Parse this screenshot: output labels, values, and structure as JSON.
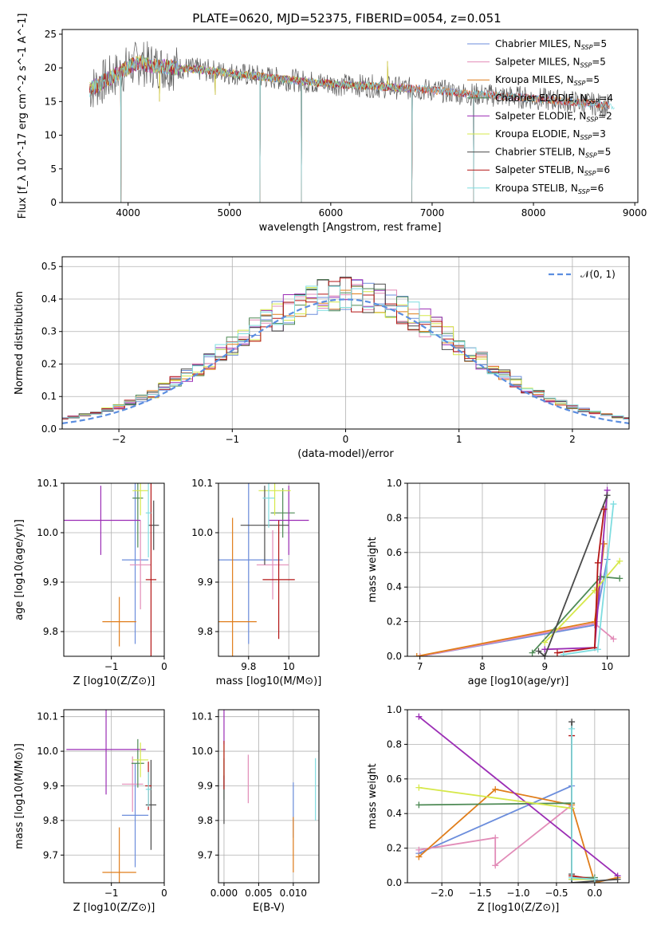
{
  "page_title": "PLATE=0620, MJD=52375, FIBERID=0054, z=0.051",
  "models": [
    {
      "name": "Chabrier MILES",
      "nssp": "5",
      "color": "#6b8ddc"
    },
    {
      "name": "Salpeter MILES",
      "nssp": "5",
      "color": "#e28cb8"
    },
    {
      "name": "Kroupa MILES",
      "nssp": "5",
      "color": "#e07d1a"
    },
    {
      "name": "Chabrier ELODIE",
      "nssp": "4",
      "color": "#4e8a55"
    },
    {
      "name": "Salpeter ELODIE",
      "nssp": "2",
      "color": "#9b2db5"
    },
    {
      "name": "Kroupa ELODIE",
      "nssp": "3",
      "color": "#d6e84a"
    },
    {
      "name": "Chabrier STELIB",
      "nssp": "5",
      "color": "#4a4a4a"
    },
    {
      "name": "Salpeter STELIB",
      "nssp": "6",
      "color": "#b31515"
    },
    {
      "name": "Kroupa STELIB",
      "nssp": "6",
      "color": "#7fdde0"
    }
  ],
  "chart_data": [
    {
      "id": "spectrum",
      "type": "line",
      "xlabel": "wavelength [Angstrom, rest frame]",
      "ylabel": "Flux [f_λ 10^-17 erg cm^-2 s^-1 A^-1]",
      "xlim": [
        3350,
        9030
      ],
      "ylim": [
        0,
        25.7
      ],
      "xticks": [
        4000,
        5000,
        6000,
        7000,
        8000,
        9000
      ],
      "yticks": [
        0,
        5,
        10,
        15,
        20,
        25
      ],
      "legend": "upper right",
      "continuum": {
        "x": [
          3620,
          3800,
          3950,
          4100,
          4300,
          4600,
          4900,
          5200,
          5500,
          5800,
          6100,
          6400,
          6700,
          7000,
          7300,
          7600,
          7900,
          8200,
          8500,
          8800
        ],
        "y": [
          16.8,
          18.3,
          19.6,
          20.8,
          20.2,
          19.9,
          19.4,
          18.9,
          18.4,
          17.9,
          17.5,
          17.3,
          17.0,
          16.7,
          16.2,
          15.9,
          15.6,
          15.2,
          14.8,
          14.3
        ]
      },
      "spikes": [
        {
          "x": 3930,
          "y": 0
        },
        {
          "x": 4310,
          "y": 15
        },
        {
          "x": 4860,
          "y": 16
        },
        {
          "x": 5300,
          "y": 0
        },
        {
          "x": 5710,
          "y": 0
        },
        {
          "x": 6560,
          "y": 21
        },
        {
          "x": 6800,
          "y": 0
        },
        {
          "x": 7410,
          "y": 0
        }
      ]
    },
    {
      "id": "residuals",
      "type": "line",
      "xlabel": "(data-model)/error",
      "ylabel": "Normed distribution",
      "xlim": [
        -2.5,
        2.5
      ],
      "ylim": [
        0,
        0.53
      ],
      "xticks": [
        -2,
        -1,
        0,
        1,
        2
      ],
      "yticks": [
        0.0,
        0.1,
        0.2,
        0.3,
        0.4,
        0.5
      ],
      "legend_label": "𝒩(0, 1)",
      "legend": "upper right",
      "grid": true,
      "gaussian_sigma": 1.0
    },
    {
      "id": "age_vs_Z",
      "type": "scatter",
      "xlabel": "Z [log10(Z/Z⊙)]",
      "ylabel": "age  [log10(age/yr)]",
      "xlim": [
        -1.9,
        0
      ],
      "ylim": [
        9.75,
        10.1
      ],
      "xticks": [
        -1,
        0
      ],
      "yticks": [
        9.8,
        9.9,
        10.0,
        10.1
      ],
      "grid": true,
      "points": [
        {
          "x": -0.55,
          "y": 9.945,
          "xerr": 0.25,
          "yerr": 0.17,
          "model": 0
        },
        {
          "x": -0.45,
          "y": 9.935,
          "xerr": 0.2,
          "yerr": 0.09,
          "model": 1
        },
        {
          "x": -0.85,
          "y": 9.82,
          "xerr": 0.32,
          "yerr": 0.05,
          "model": 2
        },
        {
          "x": -0.5,
          "y": 10.07,
          "xerr": 0.1,
          "yerr": 0.1,
          "model": 3
        },
        {
          "x": -1.2,
          "y": 10.025,
          "xerr": 0.75,
          "yerr": 0.07,
          "model": 4
        },
        {
          "x": -0.45,
          "y": 10.085,
          "xerr": 0.15,
          "yerr": 0.05,
          "model": 5
        },
        {
          "x": -0.2,
          "y": 10.015,
          "xerr": 0.1,
          "yerr": 0.05,
          "model": 6
        },
        {
          "x": -0.25,
          "y": 9.905,
          "xerr": 0.1,
          "yerr": 0.22,
          "model": 7
        },
        {
          "x": -0.3,
          "y": 10.04,
          "xerr": 0.05,
          "yerr": 0.09,
          "model": 8
        }
      ]
    },
    {
      "id": "age_vs_mass",
      "type": "scatter",
      "xlabel": "mass [log10(M/M⊙)]",
      "ylabel": "",
      "xlim": [
        9.65,
        10.15
      ],
      "ylim": [
        9.75,
        10.1
      ],
      "xticks": [
        9.8,
        10.0
      ],
      "yticks": [
        9.8,
        9.9,
        10.0,
        10.1
      ],
      "grid": true,
      "points": [
        {
          "x": 9.8,
          "y": 9.945,
          "xerr": 0.17,
          "yerr": 0.17,
          "model": 0
        },
        {
          "x": 9.92,
          "y": 9.935,
          "xerr": 0.08,
          "yerr": 0.07,
          "model": 1
        },
        {
          "x": 9.72,
          "y": 9.82,
          "xerr": 0.12,
          "yerr": 0.21,
          "model": 2
        },
        {
          "x": 9.97,
          "y": 10.04,
          "xerr": 0.06,
          "yerr": 0.05,
          "model": 3
        },
        {
          "x": 10.0,
          "y": 10.025,
          "xerr": 0.1,
          "yerr": 0.07,
          "model": 4
        },
        {
          "x": 9.93,
          "y": 10.085,
          "xerr": 0.08,
          "yerr": 0.05,
          "model": 5
        },
        {
          "x": 9.88,
          "y": 10.015,
          "xerr": 0.12,
          "yerr": 0.08,
          "model": 6
        },
        {
          "x": 9.95,
          "y": 9.905,
          "xerr": 0.08,
          "yerr": 0.12,
          "model": 7
        },
        {
          "x": 9.9,
          "y": 10.07,
          "xerr": 0.03,
          "yerr": 0.06,
          "model": 8
        }
      ]
    },
    {
      "id": "weight_vs_age",
      "type": "line",
      "xlabel": "age  [log10(age/yr)]",
      "ylabel": "mass weight",
      "xlim": [
        6.8,
        10.35
      ],
      "ylim": [
        0,
        1.0
      ],
      "xticks": [
        7,
        8,
        9,
        10
      ],
      "yticks": [
        0.0,
        0.2,
        0.4,
        0.6,
        0.8,
        1.0
      ],
      "grid": true,
      "series": [
        {
          "model": 0,
          "x": [
            7.0,
            9.8,
            10.0
          ],
          "y": [
            0.0,
            0.18,
            0.56
          ]
        },
        {
          "model": 1,
          "x": [
            7.0,
            9.8,
            10.1
          ],
          "y": [
            0.0,
            0.19,
            0.1
          ]
        },
        {
          "model": 2,
          "x": [
            6.95,
            9.8,
            9.95
          ],
          "y": [
            0.0,
            0.2,
            0.65
          ]
        },
        {
          "model": 3,
          "x": [
            8.8,
            9.9,
            10.2
          ],
          "y": [
            0.02,
            0.46,
            0.45
          ]
        },
        {
          "model": 4,
          "x": [
            9.0,
            9.8,
            10.0
          ],
          "y": [
            0.04,
            0.05,
            0.96
          ]
        },
        {
          "model": 5,
          "x": [
            9.0,
            9.8,
            10.2
          ],
          "y": [
            0.08,
            0.38,
            0.55
          ]
        },
        {
          "model": 6,
          "x": [
            8.9,
            9.0,
            10.0
          ],
          "y": [
            0.03,
            0.0,
            0.93
          ]
        },
        {
          "model": 7,
          "x": [
            9.2,
            9.8,
            9.85,
            9.95
          ],
          "y": [
            0.02,
            0.05,
            0.54,
            0.85
          ]
        },
        {
          "model": 8,
          "x": [
            9.3,
            9.85,
            10.1
          ],
          "y": [
            0.01,
            0.04,
            0.88
          ]
        }
      ]
    },
    {
      "id": "mass_vs_Z",
      "type": "scatter",
      "xlabel": "Z [log10(Z/Z⊙)]",
      "ylabel": "mass [log10(M/M⊙)]",
      "xlim": [
        -1.9,
        0
      ],
      "ylim": [
        9.62,
        10.12
      ],
      "xticks": [
        -1,
        0
      ],
      "yticks": [
        9.7,
        9.8,
        9.9,
        10.0,
        10.1
      ],
      "grid": true,
      "points": [
        {
          "x": -0.55,
          "y": 9.815,
          "xerr": 0.25,
          "yerr": 0.15,
          "model": 0
        },
        {
          "x": -0.6,
          "y": 9.905,
          "xerr": 0.2,
          "yerr": 0.08,
          "model": 1
        },
        {
          "x": -0.85,
          "y": 9.65,
          "xerr": 0.32,
          "yerr": 0.13,
          "model": 2
        },
        {
          "x": -0.5,
          "y": 9.965,
          "xerr": 0.12,
          "yerr": 0.07,
          "model": 3
        },
        {
          "x": -1.1,
          "y": 10.005,
          "xerr": 0.75,
          "yerr": 0.13,
          "model": 4
        },
        {
          "x": -0.45,
          "y": 9.975,
          "xerr": 0.15,
          "yerr": 0.05,
          "model": 5
        },
        {
          "x": -0.25,
          "y": 9.845,
          "xerr": 0.1,
          "yerr": 0.13,
          "model": 6
        },
        {
          "x": -0.3,
          "y": 9.9,
          "xerr": 0.06,
          "yerr": 0.07,
          "model": 7
        },
        {
          "x": -0.3,
          "y": 9.89,
          "xerr": 0.05,
          "yerr": 0.05,
          "model": 8
        }
      ]
    },
    {
      "id": "mass_vs_EBV",
      "type": "scatter",
      "xlabel": "E(B-V)",
      "ylabel": "",
      "xlim": [
        -0.0008,
        0.0137
      ],
      "ylim": [
        9.62,
        10.12
      ],
      "xticks": [
        0.0,
        0.005,
        0.01
      ],
      "xticklabels": [
        "0.000",
        "0.005",
        "0.010"
      ],
      "yticks": [
        9.7,
        9.8,
        9.9,
        10.0,
        10.1
      ],
      "grid": true,
      "points": [
        {
          "x": 0.01,
          "y": 9.83,
          "xerr": 0,
          "yerr": 0.08,
          "model": 0
        },
        {
          "x": 0.0035,
          "y": 9.92,
          "xerr": 0,
          "yerr": 0.07,
          "model": 1
        },
        {
          "x": 0.01,
          "y": 9.73,
          "xerr": 0,
          "yerr": 0.08,
          "model": 2
        },
        {
          "x": 0.0,
          "y": 9.92,
          "xerr": 0,
          "yerr": 0.06,
          "model": 3
        },
        {
          "x": 0.0,
          "y": 10.08,
          "xerr": 0,
          "yerr": 0.06,
          "model": 4
        },
        {
          "x": 0.0,
          "y": 9.97,
          "xerr": 0,
          "yerr": 0.05,
          "model": 5
        },
        {
          "x": 0.0,
          "y": 9.86,
          "xerr": 0,
          "yerr": 0.07,
          "model": 6
        },
        {
          "x": 0.0,
          "y": 9.96,
          "xerr": 0,
          "yerr": 0.07,
          "model": 7
        },
        {
          "x": 0.0132,
          "y": 9.89,
          "xerr": 0,
          "yerr": 0.09,
          "model": 8
        }
      ]
    },
    {
      "id": "weight_vs_Z",
      "type": "line",
      "xlabel": "Z [log10(Z/Z⊙)]",
      "ylabel": "mass weight",
      "xlim": [
        -2.45,
        0.45
      ],
      "ylim": [
        0,
        1.0
      ],
      "xticks": [
        -2.0,
        -1.5,
        -1.0,
        -0.5,
        0.0
      ],
      "xticklabels": [
        "−2.0",
        "−1.5",
        "−1.0",
        "−0.5",
        "0.0"
      ],
      "yticks": [
        0.0,
        0.2,
        0.4,
        0.6,
        0.8,
        1.0
      ],
      "grid": true,
      "series": [
        {
          "model": 0,
          "x": [
            -2.3,
            -0.3,
            -0.3,
            -0.3
          ],
          "y": [
            0.17,
            0.56,
            0.02,
            0.02
          ]
        },
        {
          "model": 1,
          "x": [
            -2.3,
            -1.3,
            -1.3,
            -0.3
          ],
          "y": [
            0.19,
            0.26,
            0.1,
            0.45
          ]
        },
        {
          "model": 2,
          "x": [
            -2.3,
            -1.3,
            -0.3,
            0.0,
            0.3
          ],
          "y": [
            0.15,
            0.54,
            0.45,
            0.0,
            0.03
          ]
        },
        {
          "model": 3,
          "x": [
            -2.3,
            -0.3,
            -0.3,
            0.0
          ],
          "y": [
            0.45,
            0.46,
            0.03,
            0.03
          ]
        },
        {
          "model": 4,
          "x": [
            -2.3,
            0.3
          ],
          "y": [
            0.96,
            0.04
          ]
        },
        {
          "model": 5,
          "x": [
            -2.3,
            -0.3,
            -0.3,
            0.0
          ],
          "y": [
            0.55,
            0.43,
            0.02,
            0.02
          ]
        },
        {
          "model": 6,
          "x": [
            -0.3,
            -0.3,
            -0.3,
            0.3
          ],
          "y": [
            0.93,
            0.05,
            0.0,
            0.02
          ]
        },
        {
          "model": 7,
          "x": [
            -0.3,
            -0.3,
            0.0
          ],
          "y": [
            0.85,
            0.04,
            0.02
          ]
        },
        {
          "model": 8,
          "x": [
            -0.3,
            -0.3,
            0.0
          ],
          "y": [
            0.89,
            0.03,
            0.02
          ]
        }
      ]
    }
  ]
}
